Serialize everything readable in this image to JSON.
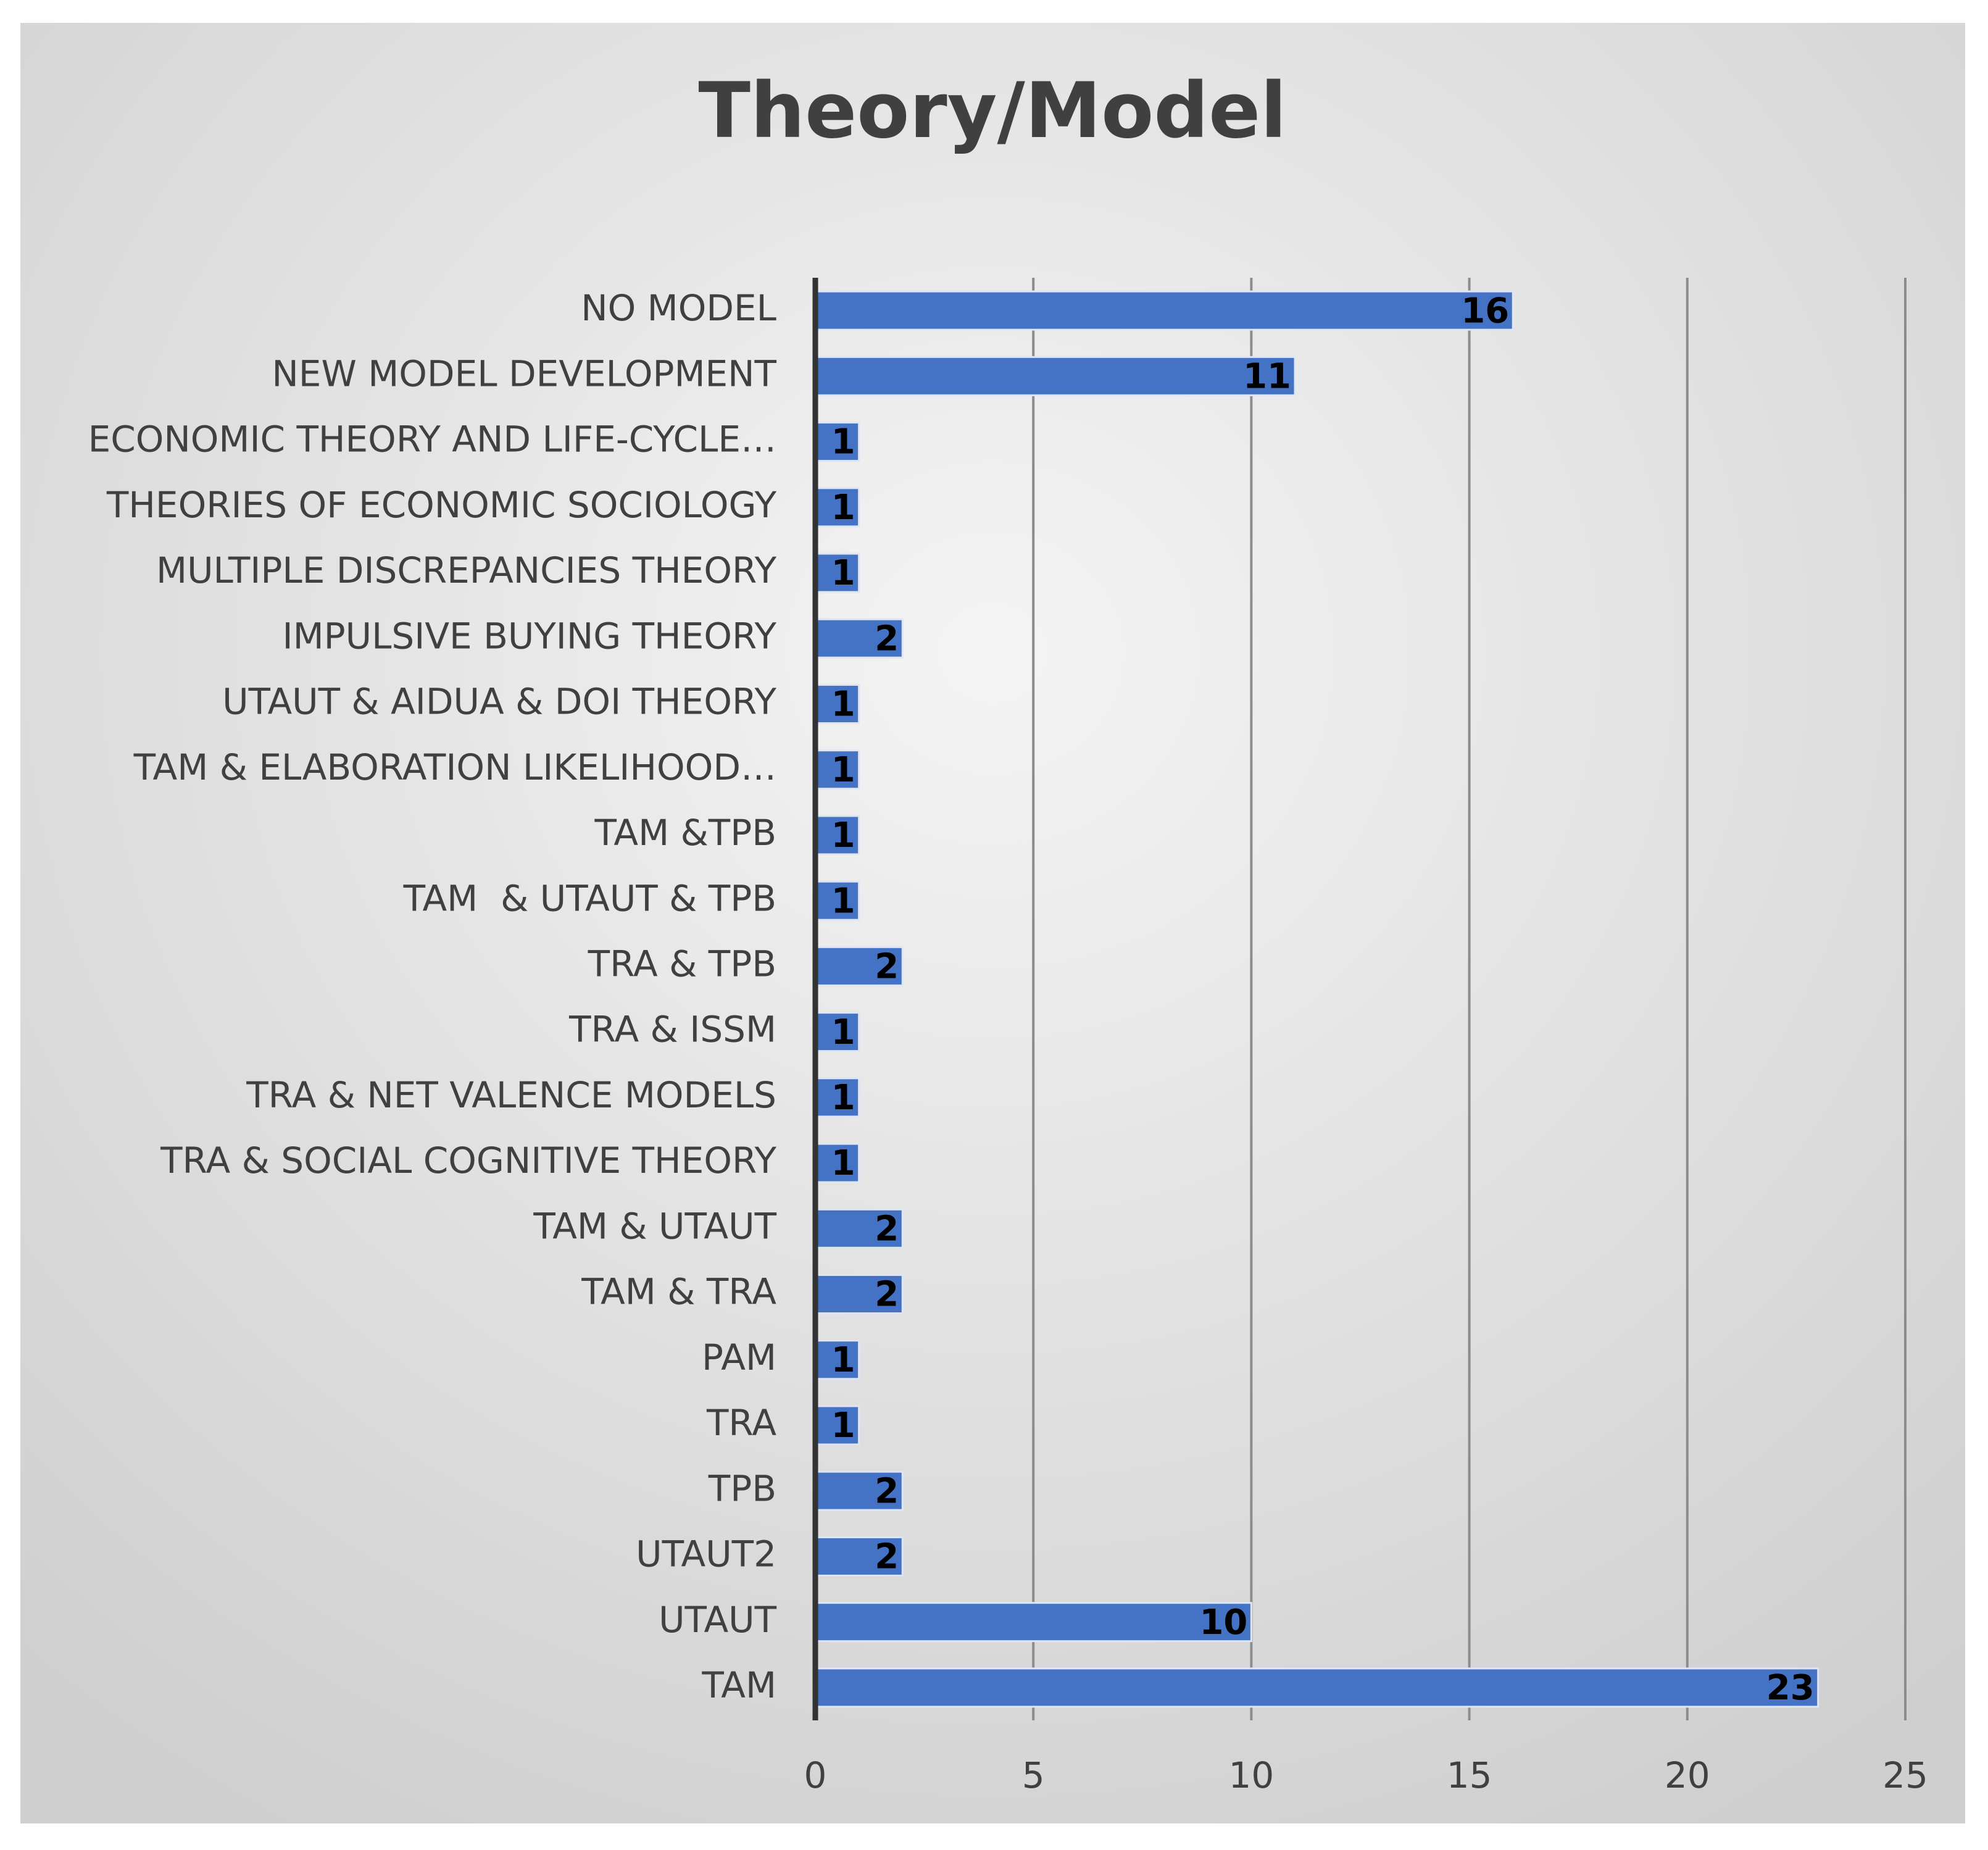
{
  "chart_data": {
    "type": "barh",
    "title": "Theory/Model",
    "categories": [
      "NO MODEL",
      "NEW MODEL DEVELOPMENT",
      "ECONOMIC THEORY AND LIFE-CYCLE…",
      "THEORIES OF ECONOMIC SOCIOLOGY",
      "MULTIPLE DISCREPANCIES THEORY",
      "IMPULSIVE BUYING THEORY",
      "UTAUT & AIDUA & DOI THEORY",
      "TAM & ELABORATION LIKELIHOOD…",
      "TAM &TPB",
      "TAM  & UTAUT & TPB",
      "TRA & TPB",
      "TRA & ISSM",
      "TRA & NET VALENCE MODELS",
      "TRA & SOCIAL COGNITIVE THEORY",
      "TAM & UTAUT",
      "TAM & TRA",
      "PAM",
      "TRA",
      "TPB",
      "UTAUT2",
      "UTAUT",
      "TAM"
    ],
    "values": [
      16,
      11,
      1,
      1,
      1,
      2,
      1,
      1,
      1,
      1,
      2,
      1,
      1,
      1,
      2,
      2,
      1,
      1,
      2,
      2,
      10,
      23
    ],
    "color": "#4472c4",
    "xlim": [
      0,
      25
    ],
    "xticks": [
      0,
      5,
      10,
      15,
      20,
      25
    ],
    "grid": true
  }
}
